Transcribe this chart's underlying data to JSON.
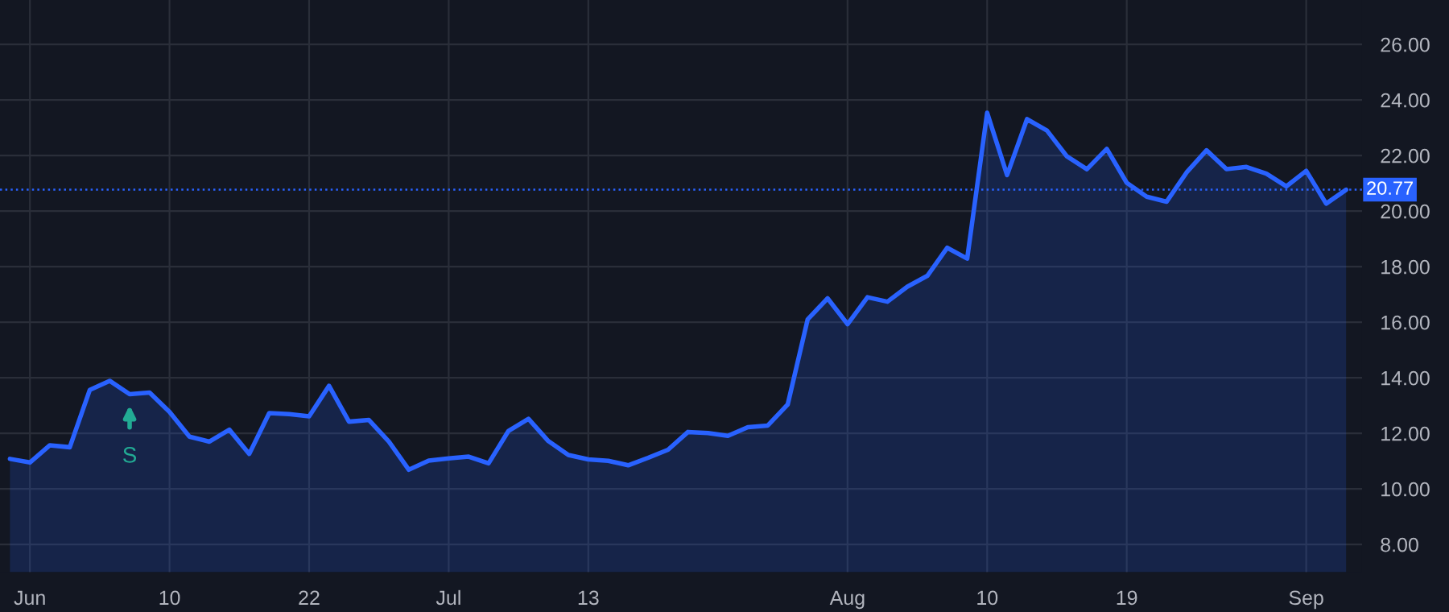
{
  "chart_data": {
    "type": "area",
    "categories": [
      null,
      "Jun",
      null,
      null,
      null,
      null,
      null,
      null,
      "10",
      null,
      null,
      null,
      null,
      null,
      null,
      "22",
      null,
      null,
      null,
      null,
      null,
      null,
      "Jul",
      null,
      null,
      null,
      null,
      null,
      null,
      "13",
      null,
      null,
      null,
      null,
      null,
      null,
      null,
      null,
      null,
      null,
      null,
      null,
      "Aug",
      null,
      null,
      null,
      null,
      null,
      null,
      "10",
      null,
      null,
      null,
      null,
      null,
      null,
      "19",
      null,
      null,
      null,
      null,
      null,
      null,
      null,
      null,
      "Sep",
      null,
      null
    ],
    "series": [
      {
        "color": "#2962ff",
        "values": [
          11.08,
          10.95,
          11.57,
          11.5,
          13.56,
          13.89,
          13.41,
          13.47,
          12.77,
          11.88,
          11.7,
          12.13,
          11.26,
          12.73,
          12.69,
          12.61,
          13.71,
          12.42,
          12.48,
          11.7,
          10.69,
          11.02,
          11.1,
          11.16,
          10.92,
          12.09,
          12.52,
          11.72,
          11.22,
          11.06,
          11.01,
          10.85,
          11.12,
          11.41,
          12.05,
          12.01,
          11.91,
          12.22,
          12.28,
          13.04,
          16.1,
          16.86,
          15.93,
          16.9,
          16.74,
          17.28,
          17.67,
          18.68,
          18.29,
          23.54,
          21.3,
          23.31,
          22.9,
          21.97,
          21.51,
          22.24,
          21.02,
          20.52,
          20.34,
          21.39,
          22.19,
          21.51,
          21.59,
          21.35,
          20.89,
          21.45,
          20.27,
          20.77
        ]
      }
    ],
    "ylim": [
      7.0,
      27.6
    ],
    "yticks": [
      {
        "value": 8,
        "label": "8.00"
      },
      {
        "value": 10,
        "label": "10.00"
      },
      {
        "value": 12,
        "label": "12.00"
      },
      {
        "value": 14,
        "label": "14.00"
      },
      {
        "value": 16,
        "label": "16.00"
      },
      {
        "value": 18,
        "label": "18.00"
      },
      {
        "value": 20,
        "label": "20.00"
      },
      {
        "value": 22,
        "label": "22.00"
      },
      {
        "value": 24,
        "label": "24.00"
      },
      {
        "value": 26,
        "label": "26.00"
      }
    ],
    "ref_lines": [
      {
        "axis": "y",
        "value": 20.77,
        "label": "20.77",
        "color": "#2962ff",
        "line_style": "dotted"
      }
    ],
    "annotations": [
      {
        "text": "S",
        "y": 13.41
      }
    ],
    "grid": true,
    "marker": "none",
    "line_style": "solid"
  }
}
